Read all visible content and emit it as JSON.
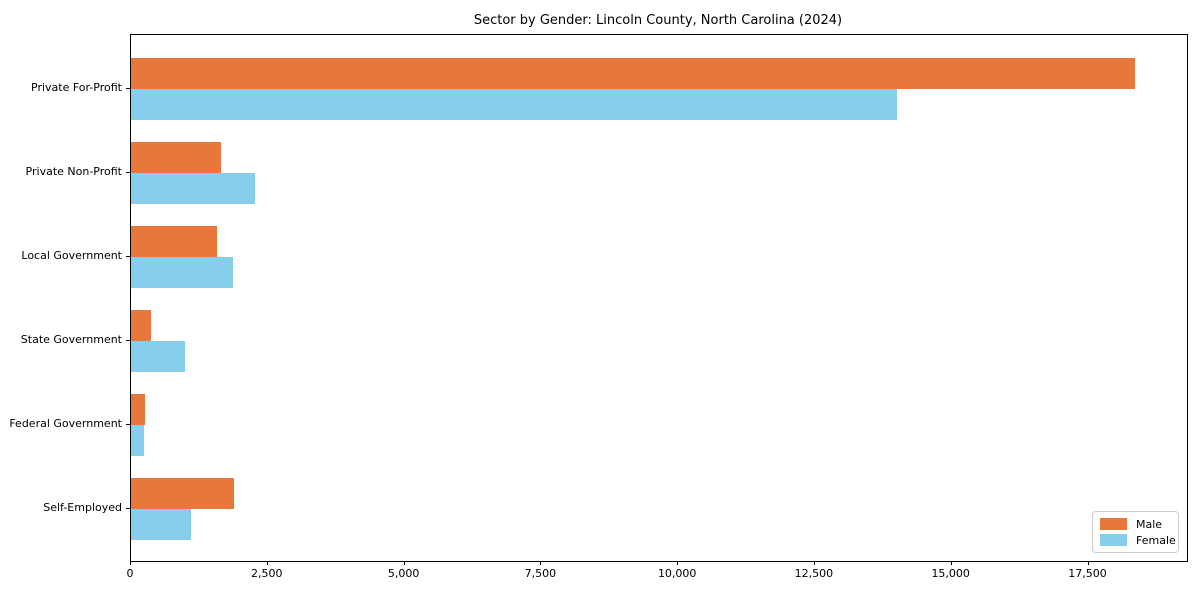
{
  "figure": {
    "title": "Sector by Gender: Lincoln County, North Carolina (2024)"
  },
  "chart_data": {
    "type": "bar",
    "orientation": "horizontal",
    "title": "Sector by Gender: Lincoln County, North Carolina (2024)",
    "categories": [
      "Private For-Profit",
      "Private Non-Profit",
      "Local Government",
      "State Government",
      "Federal Government",
      "Self-Employed"
    ],
    "series": [
      {
        "name": "Male",
        "color": "#e8773b",
        "values": [
          18350,
          1640,
          1580,
          370,
          250,
          1880
        ]
      },
      {
        "name": "Female",
        "color": "#87ceeb",
        "values": [
          14000,
          2260,
          1870,
          985,
          240,
          1090
        ]
      }
    ],
    "xlabel": "",
    "ylabel": "",
    "xlim": [
      0,
      19300
    ],
    "xticks": [
      0,
      2500,
      5000,
      7500,
      10000,
      12500,
      15000,
      17500
    ],
    "xtick_labels": [
      "0",
      "2,500",
      "5,000",
      "7,500",
      "10,000",
      "12,500",
      "15,000",
      "17,500"
    ],
    "legend": {
      "position": "lower right",
      "entries": [
        "Male",
        "Female"
      ]
    },
    "grid": false,
    "background_color": "#ffffff",
    "axis_color": "#000000"
  }
}
